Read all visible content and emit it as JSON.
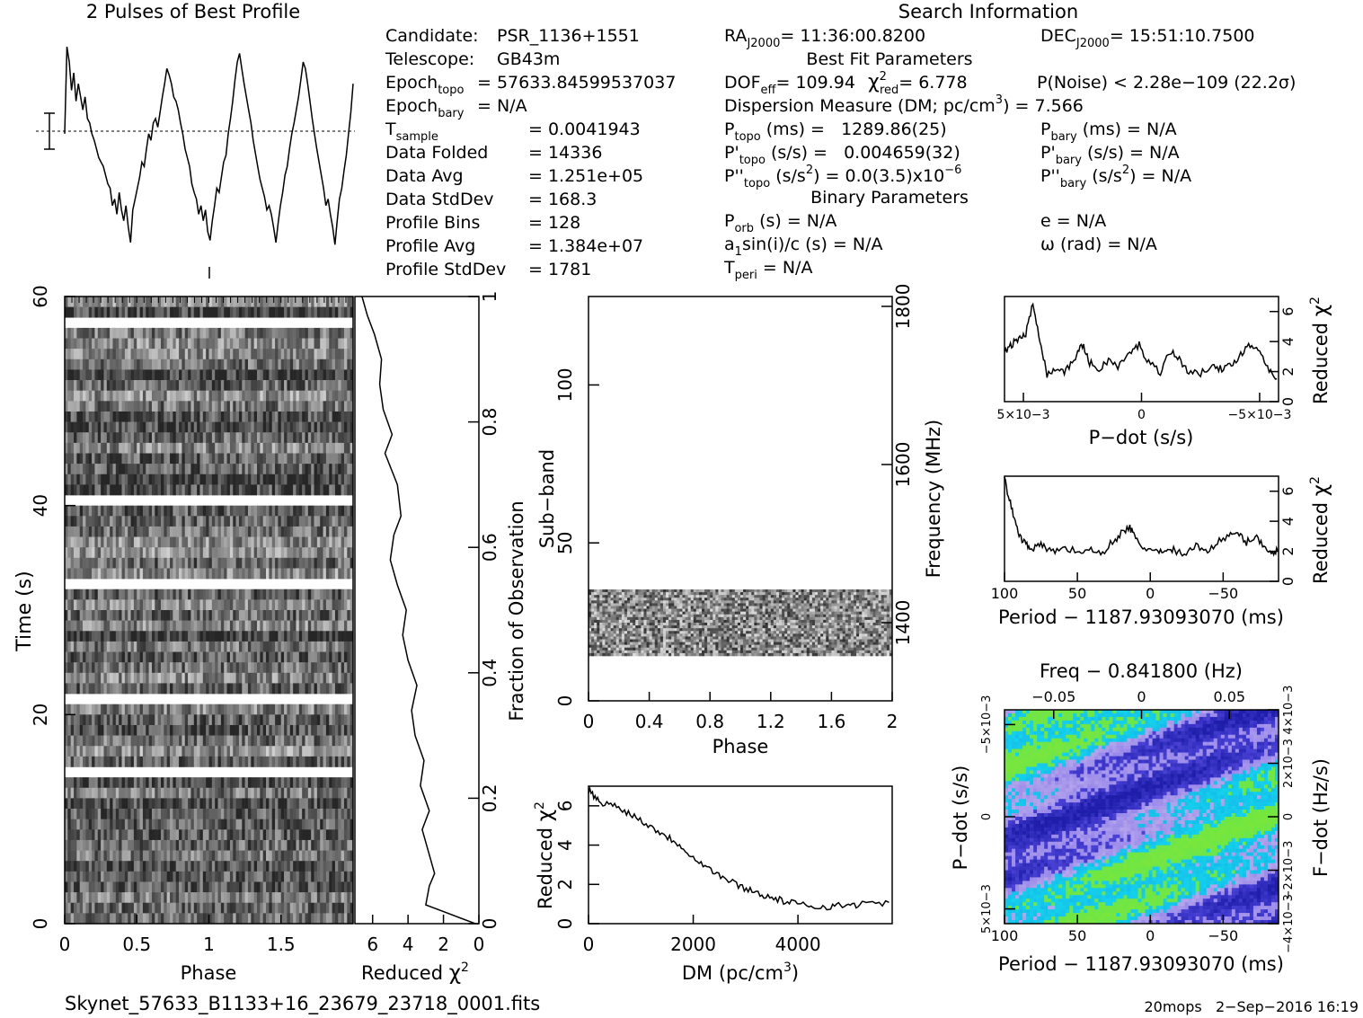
{
  "header": {
    "profile_title": "2 Pulses of Best Profile",
    "search_title": "Search Information"
  },
  "info": {
    "col1": [
      {
        "label": "Candidate:",
        "sub": "",
        "value": "PSR_1136+1551"
      },
      {
        "label": "Telescope:",
        "sub": "",
        "value": "GB43m"
      },
      {
        "label": "Epoch",
        "sub": "topo",
        "value": "= 57633.84599537037"
      },
      {
        "label": "Epoch",
        "sub": "bary",
        "value": "= N/A"
      },
      {
        "label": "T",
        "sub": "sample",
        "value": "=   0.0041943"
      },
      {
        "label": "Data Folded",
        "sub": "",
        "value": "=   14336"
      },
      {
        "label": "Data Avg",
        "sub": "",
        "value": "=   1.251e+05"
      },
      {
        "label": "Data StdDev",
        "sub": "",
        "value": "=   168.3"
      },
      {
        "label": "Profile Bins",
        "sub": "",
        "value": "=   128"
      },
      {
        "label": "Profile Avg",
        "sub": "",
        "value": "=   1.384e+07"
      },
      {
        "label": "Profile StdDev",
        "sub": "",
        "value": "=   1781"
      }
    ],
    "ra": "RA",
    "ra_sub": "J2000",
    "ra_value": "= 11:36:00.8200",
    "dec": "DEC",
    "dec_sub": "J2000",
    "dec_value": "= 15:51:10.7500",
    "best_fit_title": "Best Fit Parameters",
    "dof": "DOF",
    "dof_sub": "eff",
    "dof_value": "= 109.94",
    "chi": "χ",
    "chi_sup": "2",
    "chi_sub": "red",
    "chi_value": "= 6.778",
    "pnoise": "P(Noise) < 2.28e−109   (22.2σ)",
    "dm_line": "Dispersion Measure (DM; pc/cm",
    "dm_sup": "3",
    "dm_value": ") = 7.566",
    "p_topo": "P",
    "p_topo_sub": "topo",
    "p_topo_value": " (ms) =   1289.86(25)",
    "pd_topo": "P'",
    "pd_topo_sub": "topo",
    "pd_topo_value": " (s/s) =   0.004659(32)",
    "pdd_topo": "P''",
    "pdd_topo_sub": "topo",
    "pdd_topo_value": " (s/s",
    "pdd_topo_sup": "2",
    "pdd_topo_value2": ") = 0.0(3.5)x10",
    "pdd_topo_sup2": "−6",
    "p_bary": "P",
    "p_bary_sub": "bary",
    "p_bary_value": " (ms) = N/A",
    "pd_bary": "P'",
    "pd_bary_sub": "bary",
    "pd_bary_value": " (s/s) = N/A",
    "pdd_bary": "P''",
    "pdd_bary_sub": "bary",
    "pdd_bary_value": " (s/s",
    "pdd_bary_sup": "2",
    "pdd_bary_value2": ") = N/A",
    "binary_title": "Binary Parameters",
    "porb": "P",
    "porb_sub": "orb",
    "porb_value": " (s) = N/A",
    "asini": "a",
    "asini_sub": "1",
    "asini_value": "sin(i)/c (s) = N/A",
    "tperi": "T",
    "tperi_sub": "peri",
    "tperi_value": " = N/A",
    "ecc": "e = N/A",
    "omega": "ω (rad) = N/A"
  },
  "footer": {
    "filename": "Skynet_57633_B1133+16_23679_23718_0001.fits",
    "stamp": "20mops   2−Sep−2016 16:19"
  },
  "chart_data": [
    {
      "id": "profile",
      "type": "line",
      "title": "2 Pulses of Best Profile",
      "x": "phase 0–2 (two pulses)",
      "values": [
        0.55,
        0.95,
        0.88,
        0.75,
        0.83,
        0.7,
        0.78,
        0.72,
        0.66,
        0.72,
        0.62,
        0.6,
        0.55,
        0.52,
        0.48,
        0.44,
        0.42,
        0.4,
        0.36,
        0.32,
        0.3,
        0.22,
        0.25,
        0.18,
        0.28,
        0.2,
        0.15,
        0.22,
        0.12,
        0.05,
        0.2,
        0.25,
        0.3,
        0.35,
        0.42,
        0.4,
        0.48,
        0.55,
        0.52,
        0.6,
        0.62,
        0.58,
        0.65,
        0.72,
        0.78,
        0.85,
        0.82,
        0.78,
        0.72,
        0.7,
        0.66,
        0.6,
        0.55,
        0.48,
        0.44,
        0.4,
        0.32,
        0.28,
        0.25,
        0.18,
        0.22,
        0.15,
        0.2,
        0.1,
        0.06,
        0.15,
        0.22,
        0.3,
        0.28,
        0.35,
        0.42,
        0.45,
        0.55,
        0.62,
        0.7,
        0.8,
        0.88,
        0.92,
        0.85,
        0.78,
        0.72,
        0.66,
        0.6,
        0.52,
        0.46,
        0.4,
        0.34,
        0.3,
        0.26,
        0.2,
        0.22,
        0.18,
        0.12,
        0.05,
        0.14,
        0.22,
        0.28,
        0.36,
        0.4,
        0.48,
        0.55,
        0.6,
        0.66,
        0.72,
        0.8,
        0.88,
        0.85,
        0.78,
        0.7,
        0.62,
        0.55,
        0.48,
        0.42,
        0.36,
        0.3,
        0.22,
        0.25,
        0.18,
        0.12,
        0.04,
        0.15,
        0.25,
        0.3,
        0.38,
        0.45,
        0.55,
        0.65,
        0.78
      ],
      "note_y": "error bar and dashed mean line"
    },
    {
      "id": "time_phase",
      "type": "heatmap",
      "xlabel": "Phase",
      "ylabel": "Time (s)",
      "x_ticks": [
        "0",
        "0.5",
        "1",
        "1.5"
      ],
      "y_ticks": [
        "0",
        "20",
        "40",
        "60"
      ],
      "xlim": [
        0,
        2
      ],
      "ylim": [
        0,
        60
      ]
    },
    {
      "id": "time_chi2",
      "type": "line",
      "xlabel": "Reduced χ2",
      "x_ticks": [
        "6",
        "4",
        "2",
        "0"
      ],
      "xlim": [
        7,
        0
      ],
      "y_right_label": "Fraction of Observation",
      "y_right_ticks": [
        "0",
        "0.2",
        "0.4",
        "0.6",
        "0.8",
        "1"
      ],
      "points": [
        [
          0.2,
          0.0
        ],
        [
          3.0,
          0.03
        ],
        [
          2.8,
          0.06
        ],
        [
          2.5,
          0.08
        ],
        [
          2.9,
          0.12
        ],
        [
          3.2,
          0.15
        ],
        [
          2.8,
          0.18
        ],
        [
          3.3,
          0.22
        ],
        [
          3.1,
          0.26
        ],
        [
          3.6,
          0.3
        ],
        [
          3.8,
          0.34
        ],
        [
          3.5,
          0.38
        ],
        [
          4.0,
          0.42
        ],
        [
          4.3,
          0.46
        ],
        [
          4.1,
          0.5
        ],
        [
          4.6,
          0.54
        ],
        [
          5.0,
          0.58
        ],
        [
          4.8,
          0.62
        ],
        [
          4.4,
          0.65
        ],
        [
          4.6,
          0.7
        ],
        [
          5.3,
          0.75
        ],
        [
          4.9,
          0.78
        ],
        [
          5.4,
          0.82
        ],
        [
          5.6,
          0.86
        ],
        [
          5.5,
          0.9
        ],
        [
          5.9,
          0.94
        ],
        [
          6.3,
          0.97
        ],
        [
          6.6,
          1.0
        ]
      ]
    },
    {
      "id": "subband_phase",
      "type": "heatmap",
      "xlabel": "Phase",
      "ylabel": "Sub−band",
      "y_right_label": "Frequency (MHz)",
      "x_ticks": [
        "0",
        "0.4",
        "0.8",
        "1.2",
        "1.6",
        "2"
      ],
      "y_ticks": [
        "0",
        "50",
        "100"
      ],
      "y_right_ticks": [
        "1400",
        "1600",
        "1800"
      ],
      "xlim": [
        0,
        2
      ],
      "ylim": [
        0,
        128
      ]
    },
    {
      "id": "dm_chi2",
      "type": "line",
      "xlabel": "DM (pc/cm3)",
      "ylabel": "Reduced χ2",
      "x_ticks": [
        "0",
        "2000",
        "4000"
      ],
      "y_ticks": [
        "0",
        "2",
        "4",
        "6"
      ],
      "xlim": [
        0,
        5800
      ],
      "ylim": [
        0,
        7
      ],
      "points": [
        [
          0,
          6.8
        ],
        [
          200,
          6.2
        ],
        [
          500,
          6.0
        ],
        [
          800,
          5.6
        ],
        [
          1100,
          5.1
        ],
        [
          1400,
          4.6
        ],
        [
          1700,
          4.1
        ],
        [
          2000,
          3.4
        ],
        [
          2300,
          2.8
        ],
        [
          2600,
          2.3
        ],
        [
          2900,
          1.9
        ],
        [
          3200,
          1.6
        ],
        [
          3500,
          1.3
        ],
        [
          3800,
          1.1
        ],
        [
          4100,
          0.95
        ],
        [
          4400,
          0.85
        ],
        [
          4700,
          0.9
        ],
        [
          5000,
          0.95
        ],
        [
          5300,
          1.0
        ],
        [
          5800,
          1.1
        ]
      ]
    },
    {
      "id": "pdot_chi2",
      "type": "line",
      "xlabel": "P−dot (s/s)",
      "ylabel": "Reduced χ2",
      "x_ticks": [
        "5×10−3",
        "0",
        "−5×10−3"
      ],
      "y_ticks": [
        "0",
        "2",
        "4",
        "6"
      ],
      "xlim": [
        0.0058,
        -0.0058
      ],
      "ylim": [
        0,
        7
      ],
      "points": [
        [
          0.0058,
          3.2
        ],
        [
          0.0055,
          3.8
        ],
        [
          0.0052,
          4.2
        ],
        [
          0.0049,
          4.5
        ],
        [
          0.0046,
          6.5
        ],
        [
          0.0043,
          4.2
        ],
        [
          0.004,
          1.8
        ],
        [
          0.0036,
          2.2
        ],
        [
          0.0032,
          2.0
        ],
        [
          0.0028,
          3.0
        ],
        [
          0.0025,
          3.8
        ],
        [
          0.0022,
          2.6
        ],
        [
          0.0018,
          2.1
        ],
        [
          0.0014,
          2.8
        ],
        [
          0.001,
          2.3
        ],
        [
          0.0005,
          3.2
        ],
        [
          0.0001,
          3.8
        ],
        [
          -0.0003,
          2.6
        ],
        [
          -0.0008,
          2.0
        ],
        [
          -0.0012,
          3.4
        ],
        [
          -0.0016,
          2.8
        ],
        [
          -0.002,
          2.0
        ],
        [
          -0.0025,
          1.8
        ],
        [
          -0.003,
          2.6
        ],
        [
          -0.0034,
          2.1
        ],
        [
          -0.0038,
          2.4
        ],
        [
          -0.0042,
          3.2
        ],
        [
          -0.0046,
          3.8
        ],
        [
          -0.005,
          3.4
        ],
        [
          -0.0054,
          2.2
        ],
        [
          -0.0058,
          1.4
        ]
      ]
    },
    {
      "id": "period_chi2",
      "type": "line",
      "xlabel": "Period − 1187.93093070 (ms)",
      "ylabel": "Reduced χ2",
      "x_ticks": [
        "100",
        "50",
        "0",
        "−50"
      ],
      "y_ticks": [
        "0",
        "2",
        "4",
        "6"
      ],
      "xlim": [
        100,
        -88
      ],
      "ylim": [
        0,
        7
      ],
      "points": [
        [
          100,
          6.8
        ],
        [
          96,
          5.2
        ],
        [
          92,
          3.6
        ],
        [
          88,
          2.8
        ],
        [
          84,
          2.4
        ],
        [
          80,
          2.2
        ],
        [
          74,
          2.4
        ],
        [
          68,
          2.0
        ],
        [
          60,
          2.2
        ],
        [
          50,
          2.0
        ],
        [
          42,
          2.1
        ],
        [
          34,
          1.8
        ],
        [
          26,
          2.6
        ],
        [
          20,
          3.2
        ],
        [
          14,
          3.6
        ],
        [
          10,
          2.8
        ],
        [
          4,
          2.2
        ],
        [
          -4,
          2.0
        ],
        [
          -10,
          1.8
        ],
        [
          -16,
          2.2
        ],
        [
          -22,
          1.7
        ],
        [
          -30,
          2.4
        ],
        [
          -38,
          2.0
        ],
        [
          -46,
          2.6
        ],
        [
          -54,
          3.0
        ],
        [
          -60,
          3.2
        ],
        [
          -66,
          2.6
        ],
        [
          -72,
          3.0
        ],
        [
          -78,
          2.4
        ],
        [
          -84,
          1.8
        ],
        [
          -88,
          2.2
        ]
      ]
    },
    {
      "id": "pdot_period",
      "type": "heatmap",
      "title": "Freq − 0.841800 (Hz)",
      "xlabel": "Period − 1187.93093070 (ms)",
      "ylabel": "P−dot (s/s)",
      "y_right_label": "F−dot (Hz/s)",
      "x_ticks": [
        "100",
        "50",
        "0",
        "−50"
      ],
      "top_ticks": [
        "−0.05",
        "0",
        "0.05"
      ],
      "y_ticks": [
        "−5×10−3",
        "0",
        "5×10−3"
      ],
      "y_right_ticks": [
        "4×10−3",
        "2×10−3",
        "0",
        "−2×10−3",
        "−4×10−3"
      ],
      "xlim": [
        100,
        -88
      ],
      "ylim": [
        -0.0058,
        0.0058
      ]
    }
  ]
}
